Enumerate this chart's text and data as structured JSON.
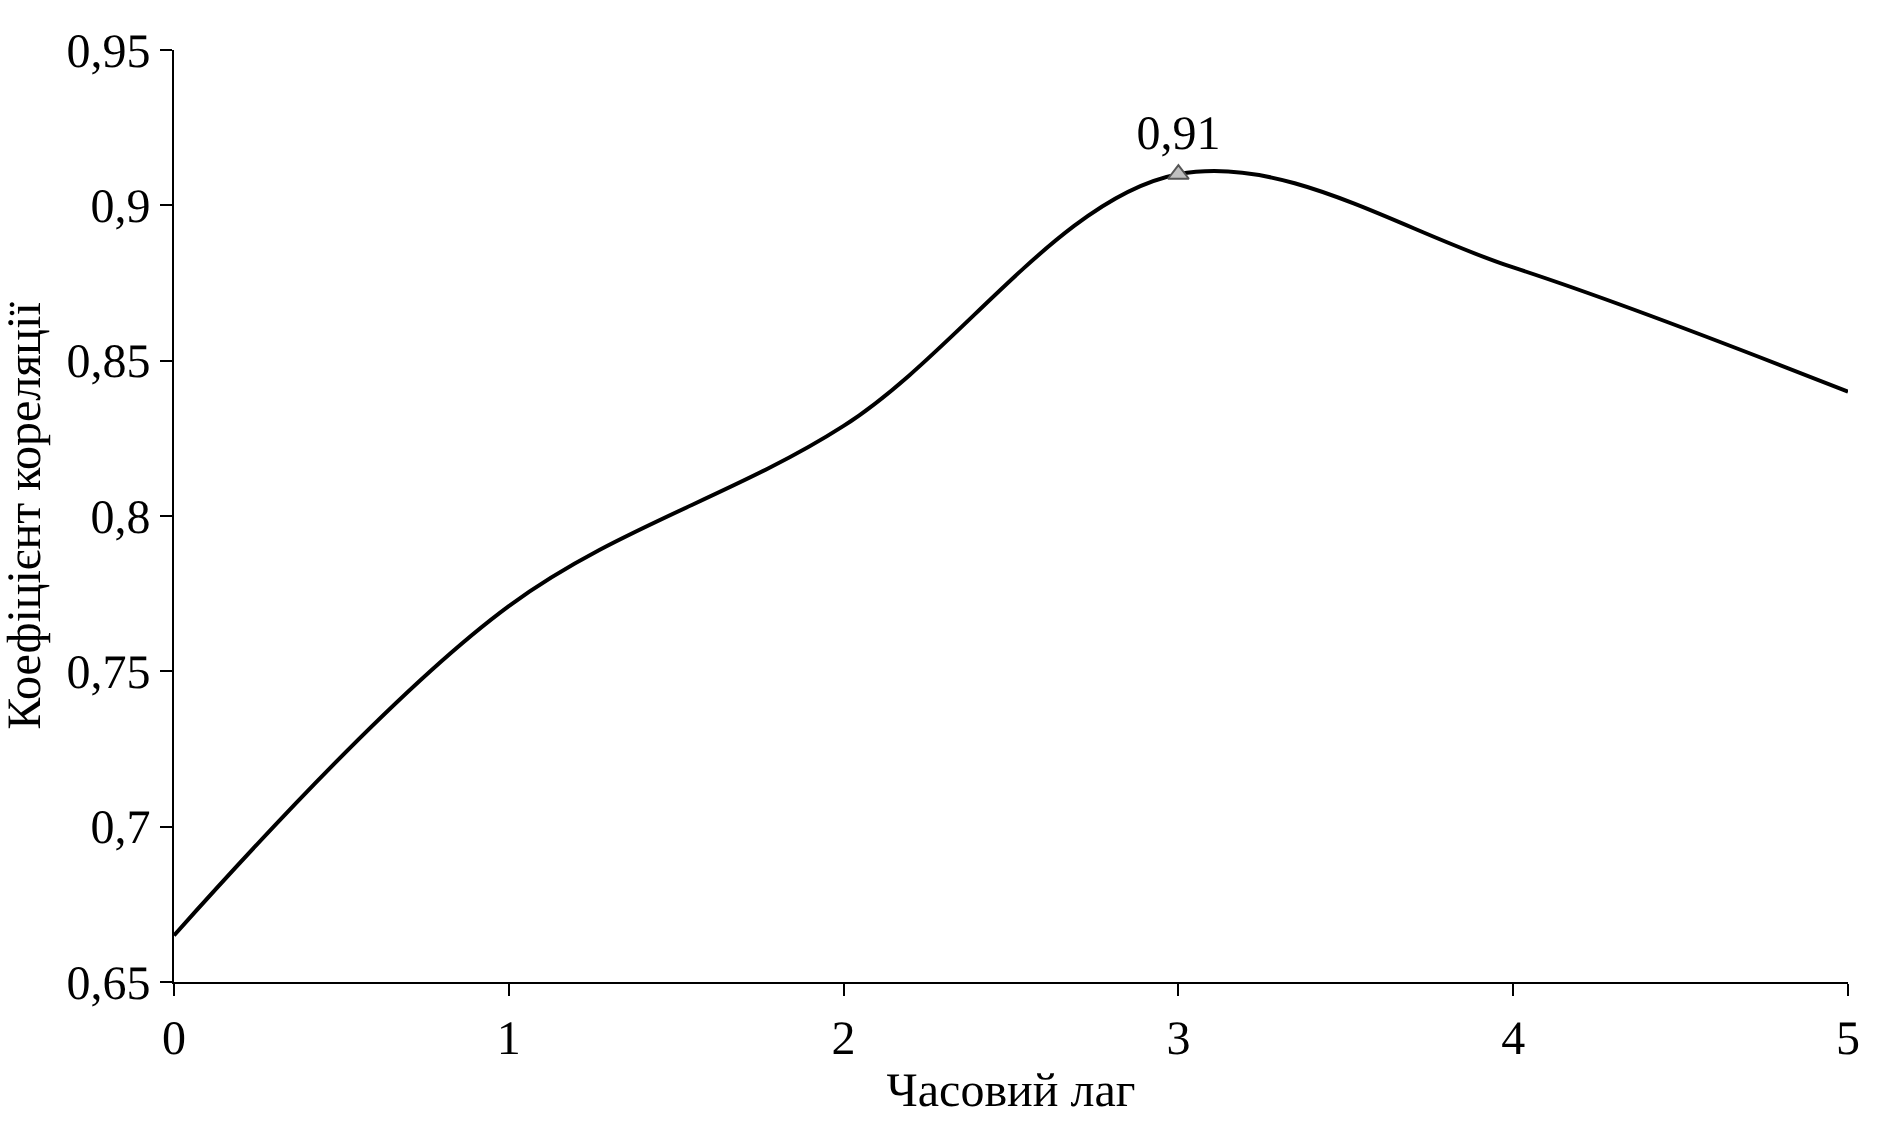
{
  "chart_data": {
    "type": "line",
    "xlabel": "Часовий лаг",
    "ylabel": "Коефіцієнт кореляції",
    "x": [
      0,
      1,
      2,
      3,
      4,
      5
    ],
    "series": [
      {
        "color": "#000000",
        "values": [
          0.665,
          0.771,
          0.829,
          0.91,
          0.88,
          0.84
        ],
        "marker": "none"
      },
      {
        "type": "scatter",
        "x": [
          3
        ],
        "color": "#c0c0c0",
        "values": [
          0.91
        ],
        "marker": "triangle",
        "value_labels": [
          "0,91"
        ]
      }
    ],
    "xlim": [
      0,
      5
    ],
    "xticks": [
      0,
      1,
      2,
      3,
      4,
      5
    ],
    "ylim": [
      0.65,
      0.95
    ],
    "yticks": [
      {
        "value": 0.65,
        "label": "0,65"
      },
      {
        "value": 0.7,
        "label": "0,7"
      },
      {
        "value": 0.75,
        "label": "0,75"
      },
      {
        "value": 0.8,
        "label": "0,8"
      },
      {
        "value": 0.85,
        "label": "0,85"
      },
      {
        "value": 0.9,
        "label": "0,9"
      },
      {
        "value": 0.95,
        "label": "0,95"
      }
    ]
  }
}
